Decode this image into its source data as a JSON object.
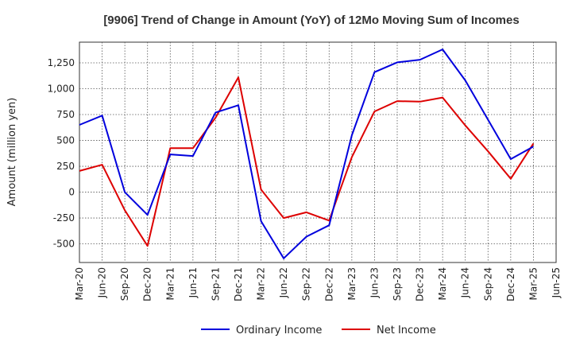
{
  "chart_data": {
    "type": "line",
    "title": "[9906]  Trend of Change in Amount (YoY) of 12Mo Moving Sum of Incomes",
    "ylabel": "Amount (million yen)",
    "xlabel": "",
    "x": [
      "Mar-20",
      "Jun-20",
      "Sep-20",
      "Dec-20",
      "Mar-21",
      "Jun-21",
      "Sep-21",
      "Dec-21",
      "Mar-22",
      "Jun-22",
      "Sep-22",
      "Dec-22",
      "Mar-23",
      "Jun-23",
      "Sep-23",
      "Dec-23",
      "Mar-24",
      "Jun-24",
      "Sep-24",
      "Dec-24",
      "Mar-25",
      "Jun-25"
    ],
    "ylim": [
      -680,
      1450
    ],
    "yticks": [
      -500,
      -250,
      0,
      250,
      500,
      750,
      1000,
      1250
    ],
    "ytick_labels": [
      "-500",
      "-250",
      "0",
      "250",
      "500",
      "750",
      "1,000",
      "1,250"
    ],
    "grid": true,
    "legend_position": "bottom",
    "series": [
      {
        "name": "Ordinary Income",
        "color": "#0000dd",
        "values": [
          650,
          740,
          0,
          -220,
          365,
          350,
          770,
          840,
          -280,
          -640,
          -430,
          -320,
          550,
          1160,
          1255,
          1280,
          1380,
          1080,
          700,
          320,
          440,
          null
        ]
      },
      {
        "name": "Net Income",
        "color": "#dd0000",
        "values": [
          205,
          265,
          -175,
          -520,
          425,
          425,
          720,
          1110,
          25,
          -250,
          -195,
          -275,
          340,
          780,
          880,
          875,
          915,
          645,
          395,
          130,
          470,
          null
        ]
      }
    ]
  }
}
